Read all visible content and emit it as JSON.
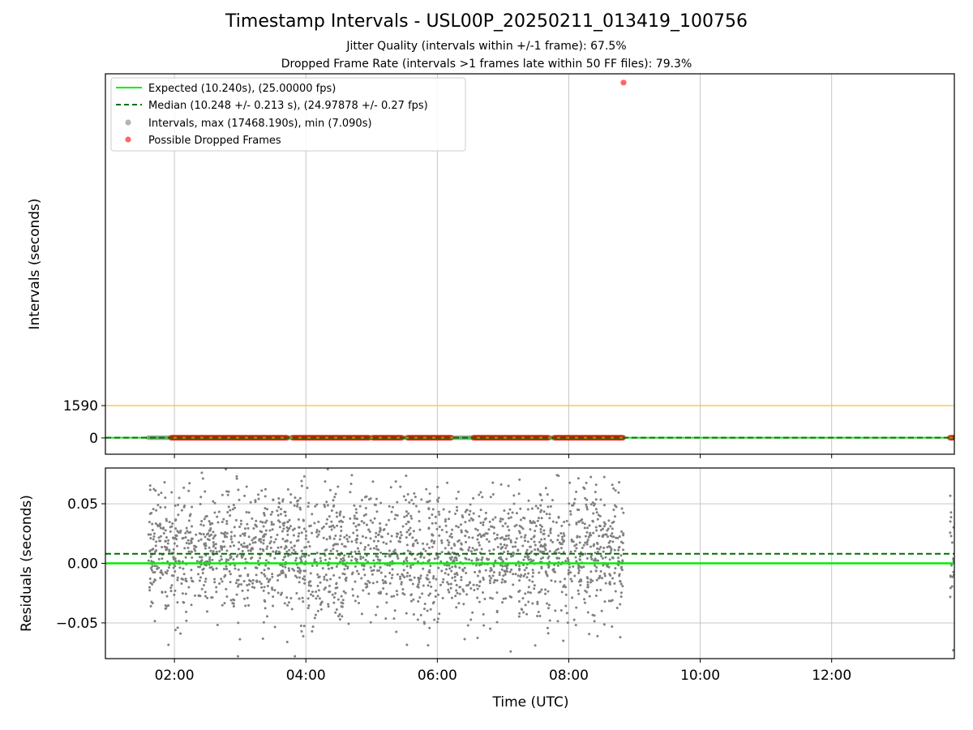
{
  "figure": {
    "title": "Timestamp Intervals - USL00P_20250211_013419_100756",
    "subtitle_1": "Jitter Quality (intervals within +/-1 frame): 67.5%",
    "subtitle_2": "Dropped Frame Rate (intervals >1 frames late within 50 FF files): 79.3%"
  },
  "colors": {
    "expected": "#00ee00",
    "median": "#007000",
    "intervals": "#808080",
    "dropped": "#ff0000",
    "threshold": "#f5c542"
  },
  "chart_data": [
    {
      "type": "scatter",
      "ylabel": "Intervals (seconds)",
      "yticks": [
        0,
        1590
      ],
      "ylim": [
        -800,
        17900
      ],
      "threshold_line": 1590,
      "expected_value": 10.24,
      "median_value": 10.248,
      "legend": {
        "placement": "top-left",
        "entries": [
          "Expected (10.240s), (25.00000 fps)",
          "Median (10.248 +/- 0.213 s), (24.97878 +/- 0.27 fps)",
          "Intervals, max (17468.190s), min (7.090s)",
          "Possible Dropped Frames"
        ]
      },
      "interval_time_range": [
        "01:36",
        "08:50"
      ],
      "dropped_frame_segments": [
        {
          "start": "01:57",
          "end": "03:43"
        },
        {
          "start": "03:48",
          "end": "04:58"
        },
        {
          "start": "05:01",
          "end": "05:28"
        },
        {
          "start": "05:33",
          "end": "06:13"
        },
        {
          "start": "06:33",
          "end": "07:42"
        },
        {
          "start": "07:47",
          "end": "08:50"
        },
        {
          "start": "13:48",
          "end": "13:55"
        }
      ],
      "outlier": {
        "time": "08:50",
        "value": 17468.19
      }
    },
    {
      "type": "scatter",
      "ylabel": "Residuals (seconds)",
      "xlabel": "Time (UTC)",
      "yticks": [
        -0.05,
        0.0,
        0.05
      ],
      "ytick_labels": [
        "−0.05",
        "0.00",
        "0.05"
      ],
      "ylim": [
        -0.08,
        0.08
      ],
      "expected_residual": 0.0,
      "median_residual": 0.008,
      "residual_spread": 0.027,
      "xlim": [
        "00:57",
        "13:52"
      ],
      "xticks": [
        "02:00",
        "04:00",
        "06:00",
        "08:00",
        "10:00",
        "12:00"
      ],
      "residual_time_ranges": [
        [
          "01:36",
          "08:50"
        ],
        [
          "13:48",
          "13:52"
        ]
      ],
      "residual_extremes": [
        {
          "time": "01:51",
          "value": 0.068
        },
        {
          "time": "02:25",
          "value": 0.076
        },
        {
          "time": "02:47",
          "value": 0.079
        },
        {
          "time": "04:20",
          "value": 0.079
        },
        {
          "time": "04:42",
          "value": 0.074
        },
        {
          "time": "07:05",
          "value": 0.065
        },
        {
          "time": "08:25",
          "value": 0.066
        },
        {
          "time": "02:58",
          "value": -0.078
        },
        {
          "time": "03:50",
          "value": -0.078
        },
        {
          "time": "03:43",
          "value": -0.066
        },
        {
          "time": "02:03",
          "value": -0.054
        },
        {
          "time": "07:55",
          "value": -0.065
        },
        {
          "time": "08:47",
          "value": -0.062
        },
        {
          "time": "07:07",
          "value": -0.074
        },
        {
          "time": "13:51",
          "value": -0.073
        }
      ]
    }
  ]
}
